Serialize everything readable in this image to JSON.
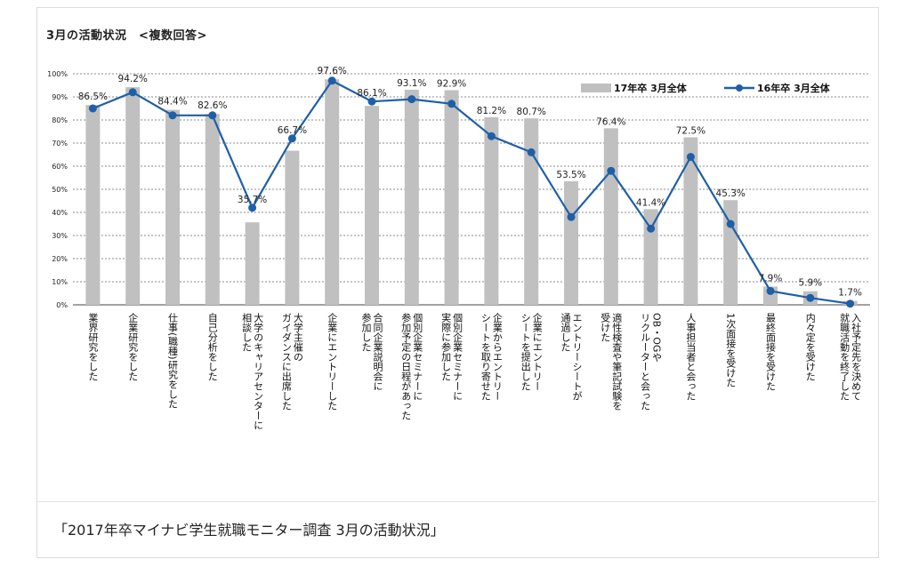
{
  "title": "3月の活動状況　<複数回答>",
  "caption": "「2017年卒マイナビ学生就職モニター調査 3月の活動状況」",
  "chart_data": {
    "type": "bar",
    "ylim": [
      0,
      100
    ],
    "y_ticks": [
      "0%",
      "10%",
      "20%",
      "30%",
      "40%",
      "50%",
      "60%",
      "70%",
      "80%",
      "90%",
      "100%"
    ],
    "grid": true,
    "legend_position": "top-right",
    "categories": [
      [
        "業界研究をした"
      ],
      [
        "企業研究をした"
      ],
      [
        "仕事(職種)研究をした"
      ],
      [
        "自己分析をした"
      ],
      [
        "大学のキャリアセンターに",
        "相談した"
      ],
      [
        "大学主催の",
        "ガイダンスに出席した"
      ],
      [
        "企業にエントリーした"
      ],
      [
        "合同企業説明会に",
        "参加した"
      ],
      [
        "個別企業セミナーに",
        "参加予定の日程があった"
      ],
      [
        "個別企業セミナーに",
        "実際に参加した"
      ],
      [
        "企業からエントリー",
        "シートを取り寄せた"
      ],
      [
        "企業にエントリー",
        "シートを提出した"
      ],
      [
        "エントリーシートが",
        "通過した"
      ],
      [
        "適性検査や筆記試験を",
        "受けた"
      ],
      [
        "OB・OGや",
        "リクルーターと会った"
      ],
      [
        "人事担当者と会った"
      ],
      [
        "1次面接を受けた"
      ],
      [
        "最終面接を受けた"
      ],
      [
        "内々定を受けた"
      ],
      [
        "入社予定先を決めて",
        "就職活動を終了した"
      ]
    ],
    "series": [
      {
        "name": "17年卒 3月全体",
        "kind": "bar",
        "color": "#c0c0c0",
        "values": [
          86.5,
          94.2,
          84.4,
          82.6,
          35.7,
          66.7,
          97.6,
          86.1,
          93.1,
          92.9,
          81.2,
          80.7,
          53.5,
          76.4,
          41.4,
          72.5,
          45.3,
          7.9,
          5.9,
          1.7
        ],
        "labels": [
          "86.5%",
          "94.2%",
          "84.4%",
          "82.6%",
          "35.7%",
          "66.7%",
          "97.6%",
          "86.1%",
          "93.1%",
          "92.9%",
          "81.2%",
          "80.7%",
          "53.5%",
          "76.4%",
          "41.4%",
          "72.5%",
          "45.3%",
          "7.9%",
          "5.9%",
          "1.7%"
        ]
      },
      {
        "name": "16年卒 3月全体",
        "kind": "line",
        "color": "#1f5fa8",
        "values": [
          85,
          92,
          82,
          82,
          42,
          72,
          97,
          88,
          89,
          87,
          73,
          66,
          38,
          58,
          33,
          64,
          35,
          6,
          3,
          0.5
        ]
      }
    ]
  }
}
